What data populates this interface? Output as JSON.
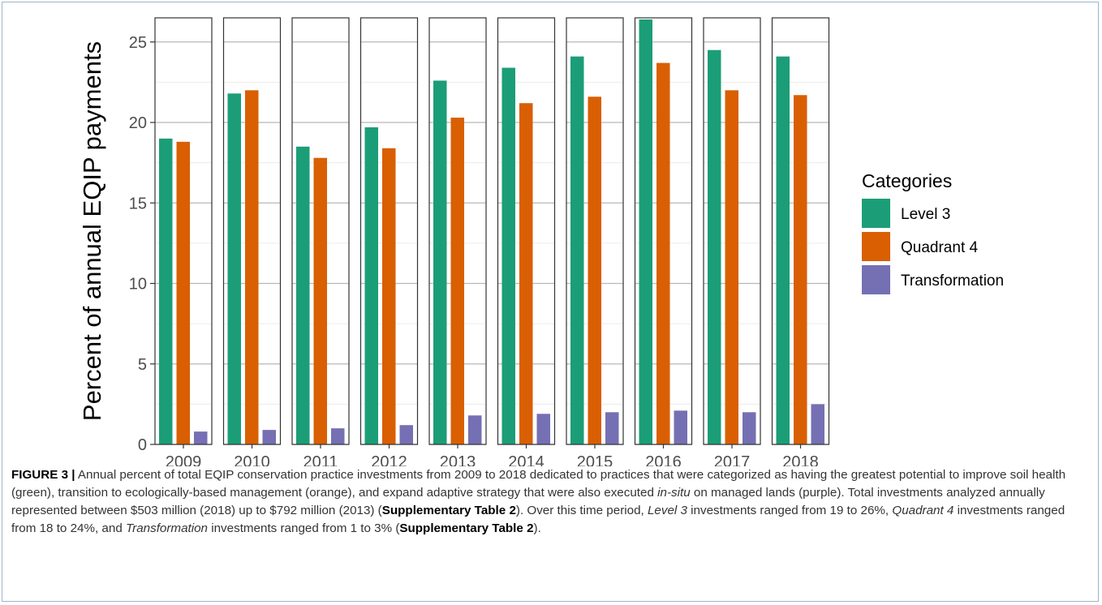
{
  "chart_data": {
    "type": "bar",
    "ylabel": "Percent of annual EQIP payments",
    "xlabel": "",
    "ylim": [
      0,
      26.5
    ],
    "yticks": [
      0,
      5,
      10,
      15,
      20,
      25
    ],
    "grid": true,
    "facets": [
      "2009",
      "2010",
      "2011",
      "2012",
      "2013",
      "2014",
      "2015",
      "2016",
      "2017",
      "2018"
    ],
    "series": [
      {
        "name": "Level 3",
        "color": "#1b9e77",
        "values": [
          19.0,
          21.8,
          18.5,
          19.7,
          22.6,
          23.4,
          24.1,
          26.4,
          24.5,
          24.1
        ]
      },
      {
        "name": "Quadrant 4",
        "color": "#d95f02",
        "values": [
          18.8,
          22.0,
          17.8,
          18.4,
          20.3,
          21.2,
          21.6,
          23.7,
          22.0,
          21.7
        ]
      },
      {
        "name": "Transformation",
        "color": "#7570b3",
        "values": [
          0.8,
          0.9,
          1.0,
          1.2,
          1.8,
          1.9,
          2.0,
          2.1,
          2.0,
          2.5
        ]
      }
    ],
    "legend": {
      "title": "Categories",
      "position": "right"
    }
  },
  "caption": {
    "label": "FIGURE 3 |",
    "t1": " Annual percent of total EQIP conservation practice investments from 2009 to 2018 dedicated to practices that were categorized as having the greatest potential to improve soil health (green), transition to ecologically-based management (orange), and expand adaptive strategy that were also executed ",
    "in_situ": "in-situ",
    "t2": " on managed lands (purple). Total investments analyzed annually represented between $503 million (2018) up to $792 million (2013) (",
    "supp1": "Supplementary Table 2",
    "t3": "). Over this time period, ",
    "level3": "Level 3",
    "t4": " investments ranged from 19 to 26%, ",
    "quadrant4": "Quadrant 4",
    "t5": " investments ranged from 18 to 24%, and ",
    "transformation": "Transformation",
    "t6": " investments ranged from 1 to 3% (",
    "supp2": "Supplementary Table 2",
    "t7": ")."
  }
}
